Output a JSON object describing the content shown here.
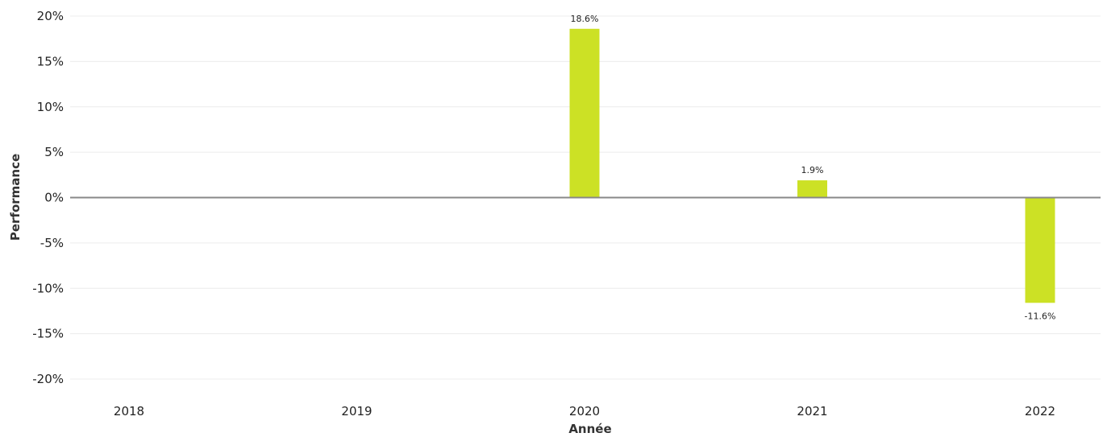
{
  "chart_data": {
    "type": "bar",
    "title": "",
    "xlabel": "Année",
    "ylabel": "Performance",
    "categories": [
      "2018",
      "2019",
      "2020",
      "2021",
      "2022"
    ],
    "values": [
      null,
      null,
      18.6,
      1.9,
      -11.6
    ],
    "data_labels": [
      "",
      "",
      "18.6%",
      "1.9%",
      "-11.6%"
    ],
    "ylim": [
      -20,
      20
    ],
    "yticks": [
      20,
      15,
      10,
      5,
      0,
      -5,
      -10,
      -15,
      -20
    ],
    "ytick_labels": [
      "20%",
      "15%",
      "10%",
      "5%",
      "0%",
      "-5%",
      "-10%",
      "-15%",
      "-20%"
    ],
    "grid": true,
    "legend": "none",
    "bar_color": "#cce125"
  }
}
